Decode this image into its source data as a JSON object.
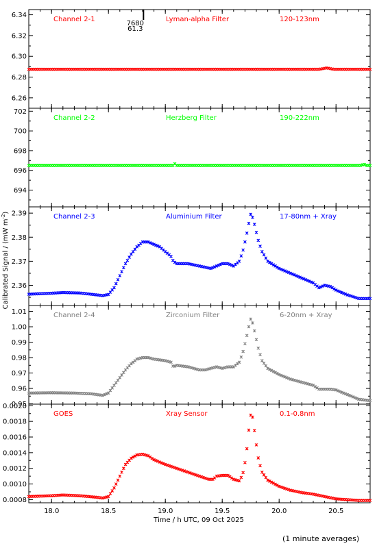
{
  "figure": {
    "ylabel": "Calibrated Signal / (mW m",
    "ylabel_sup": "-2",
    "ylabel_close": ")",
    "xlabel": "Time / h UTC, 09 Oct 2025",
    "footnote": "(1 minute averages)",
    "marker": {
      "top": "7680",
      "bottom": "61.3"
    }
  },
  "chart_data": [
    {
      "type": "scatter",
      "channel": "Channel 2-1",
      "filter": "Lyman-alpha Filter",
      "band": "120-123nm",
      "color": "#ff0000",
      "ylim": [
        6.25,
        6.345
      ],
      "yticks": [
        6.26,
        6.28,
        6.3,
        6.32,
        6.34
      ],
      "ytick_labels": [
        "6.26",
        "6.28",
        "6.30",
        "6.32",
        "6.34"
      ],
      "points": [
        [
          17.8,
          6.2875
        ],
        [
          20.35,
          6.2875
        ],
        [
          20.42,
          6.2888
        ],
        [
          20.48,
          6.2875
        ],
        [
          20.8,
          6.2875
        ]
      ]
    },
    {
      "type": "scatter",
      "channel": "Channel 2-2",
      "filter": "Herzberg Filter",
      "band": "190-222nm",
      "color": "#00ff00",
      "ylim": [
        692.3,
        702.3
      ],
      "yticks": [
        694,
        696,
        698,
        700,
        702
      ],
      "ytick_labels": [
        "694",
        "696",
        "698",
        "700",
        "702"
      ],
      "points": [
        [
          17.8,
          696.5
        ],
        [
          19.07,
          696.5
        ],
        [
          19.08,
          696.7
        ],
        [
          19.1,
          696.5
        ],
        [
          20.73,
          696.5
        ],
        [
          20.74,
          696.7
        ],
        [
          20.76,
          696.5
        ],
        [
          20.8,
          696.5
        ]
      ]
    },
    {
      "type": "scatter",
      "channel": "Channel 2-3",
      "filter": "Aluminium Filter",
      "band": "17-80nm + Xray",
      "color": "#0000ff",
      "ylim": [
        2.3516,
        2.3926
      ],
      "yticks": [
        2.36,
        2.37,
        2.38,
        2.39
      ],
      "ytick_labels": [
        "2.36",
        "2.37",
        "2.38",
        "2.39"
      ],
      "points": [
        [
          17.8,
          2.3563
        ],
        [
          18.0,
          2.3567
        ],
        [
          18.1,
          2.357
        ],
        [
          18.25,
          2.3568
        ],
        [
          18.4,
          2.356
        ],
        [
          18.45,
          2.3557
        ],
        [
          18.5,
          2.3562
        ],
        [
          18.55,
          2.359
        ],
        [
          18.6,
          2.364
        ],
        [
          18.65,
          2.369
        ],
        [
          18.7,
          2.373
        ],
        [
          18.75,
          2.376
        ],
        [
          18.8,
          2.378
        ],
        [
          18.85,
          2.378
        ],
        [
          18.9,
          2.377
        ],
        [
          18.95,
          2.376
        ],
        [
          19.0,
          2.374
        ],
        [
          19.05,
          2.372
        ],
        [
          19.07,
          2.37
        ],
        [
          19.1,
          2.369
        ],
        [
          19.2,
          2.369
        ],
        [
          19.3,
          2.368
        ],
        [
          19.4,
          2.367
        ],
        [
          19.45,
          2.368
        ],
        [
          19.5,
          2.369
        ],
        [
          19.55,
          2.369
        ],
        [
          19.6,
          2.368
        ],
        [
          19.65,
          2.37
        ],
        [
          19.68,
          2.374
        ],
        [
          19.71,
          2.38
        ],
        [
          19.73,
          2.385
        ],
        [
          19.75,
          2.3895
        ],
        [
          19.77,
          2.388
        ],
        [
          19.79,
          2.384
        ],
        [
          19.82,
          2.378
        ],
        [
          19.85,
          2.374
        ],
        [
          19.9,
          2.37
        ],
        [
          20.0,
          2.367
        ],
        [
          20.1,
          2.365
        ],
        [
          20.2,
          2.363
        ],
        [
          20.3,
          2.361
        ],
        [
          20.35,
          2.359
        ],
        [
          20.4,
          2.36
        ],
        [
          20.45,
          2.3595
        ],
        [
          20.5,
          2.358
        ],
        [
          20.6,
          2.356
        ],
        [
          20.7,
          2.3545
        ],
        [
          20.8,
          2.3545
        ]
      ]
    },
    {
      "type": "scatter",
      "channel": "Channel 2-4",
      "filter": "Zirconium Filter",
      "band": "6-20nm + Xray",
      "color": "#808080",
      "ylim": [
        0.9498,
        1.0138
      ],
      "yticks": [
        0.95,
        0.96,
        0.97,
        0.98,
        0.99,
        1.0,
        1.01
      ],
      "ytick_labels": [
        "0.95",
        "0.96",
        "0.97",
        "0.98",
        "0.99",
        "1.00",
        "1.01"
      ],
      "points": [
        [
          17.8,
          0.957
        ],
        [
          18.0,
          0.9572
        ],
        [
          18.2,
          0.957
        ],
        [
          18.35,
          0.9565
        ],
        [
          18.45,
          0.9555
        ],
        [
          18.5,
          0.957
        ],
        [
          18.55,
          0.962
        ],
        [
          18.6,
          0.967
        ],
        [
          18.65,
          0.972
        ],
        [
          18.7,
          0.976
        ],
        [
          18.75,
          0.979
        ],
        [
          18.8,
          0.98
        ],
        [
          18.85,
          0.98
        ],
        [
          18.9,
          0.979
        ],
        [
          19.0,
          0.978
        ],
        [
          19.05,
          0.977
        ],
        [
          19.07,
          0.974
        ],
        [
          19.1,
          0.975
        ],
        [
          19.2,
          0.974
        ],
        [
          19.3,
          0.972
        ],
        [
          19.35,
          0.972
        ],
        [
          19.4,
          0.973
        ],
        [
          19.45,
          0.974
        ],
        [
          19.5,
          0.973
        ],
        [
          19.55,
          0.974
        ],
        [
          19.6,
          0.974
        ],
        [
          19.65,
          0.977
        ],
        [
          19.68,
          0.983
        ],
        [
          19.71,
          0.992
        ],
        [
          19.73,
          0.999
        ],
        [
          19.75,
          1.005
        ],
        [
          19.77,
          1.002
        ],
        [
          19.79,
          0.995
        ],
        [
          19.82,
          0.985
        ],
        [
          19.85,
          0.978
        ],
        [
          19.9,
          0.973
        ],
        [
          20.0,
          0.969
        ],
        [
          20.1,
          0.966
        ],
        [
          20.2,
          0.964
        ],
        [
          20.3,
          0.962
        ],
        [
          20.35,
          0.9595
        ],
        [
          20.45,
          0.9595
        ],
        [
          20.5,
          0.959
        ],
        [
          20.6,
          0.956
        ],
        [
          20.7,
          0.953
        ],
        [
          20.8,
          0.952
        ]
      ]
    },
    {
      "type": "scatter",
      "channel": "GOES",
      "filter": "Xray Sensor",
      "band": "0.1-0.8nm",
      "color": "#ff0000",
      "ylim": [
        0.00076,
        0.00202
      ],
      "yticks": [
        0.0008,
        0.001,
        0.0012,
        0.0014,
        0.0016,
        0.0018,
        0.002
      ],
      "ytick_labels": [
        "0.0008",
        "0.0010",
        "0.0012",
        "0.0014",
        "0.0016",
        "0.0018",
        "0.0020"
      ],
      "points": [
        [
          17.8,
          0.00084
        ],
        [
          18.0,
          0.00085
        ],
        [
          18.1,
          0.00086
        ],
        [
          18.25,
          0.00085
        ],
        [
          18.4,
          0.00083
        ],
        [
          18.45,
          0.00082
        ],
        [
          18.5,
          0.00084
        ],
        [
          18.55,
          0.00095
        ],
        [
          18.6,
          0.0011
        ],
        [
          18.65,
          0.00125
        ],
        [
          18.7,
          0.00133
        ],
        [
          18.75,
          0.00137
        ],
        [
          18.8,
          0.00138
        ],
        [
          18.85,
          0.00136
        ],
        [
          18.9,
          0.00131
        ],
        [
          19.0,
          0.00125
        ],
        [
          19.1,
          0.0012
        ],
        [
          19.2,
          0.00115
        ],
        [
          19.3,
          0.0011
        ],
        [
          19.38,
          0.00106
        ],
        [
          19.42,
          0.00106
        ],
        [
          19.45,
          0.0011
        ],
        [
          19.5,
          0.00111
        ],
        [
          19.55,
          0.00111
        ],
        [
          19.6,
          0.00106
        ],
        [
          19.65,
          0.00104
        ],
        [
          19.68,
          0.00112
        ],
        [
          19.71,
          0.00135
        ],
        [
          19.73,
          0.00165
        ],
        [
          19.75,
          0.00188
        ],
        [
          19.77,
          0.00185
        ],
        [
          19.79,
          0.0016
        ],
        [
          19.82,
          0.0013
        ],
        [
          19.85,
          0.00115
        ],
        [
          19.9,
          0.00105
        ],
        [
          20.0,
          0.00097
        ],
        [
          20.1,
          0.00092
        ],
        [
          20.2,
          0.00089
        ],
        [
          20.3,
          0.00087
        ],
        [
          20.4,
          0.00084
        ],
        [
          20.5,
          0.00081
        ],
        [
          20.6,
          0.0008
        ],
        [
          20.7,
          0.00079
        ],
        [
          20.8,
          0.00079
        ]
      ]
    }
  ],
  "xaxis": {
    "xlim": [
      17.8,
      20.8
    ],
    "ticks": [
      18.0,
      18.5,
      19.0,
      19.5,
      20.0,
      20.5
    ],
    "tick_labels": [
      "18.0",
      "18.5",
      "19.0",
      "19.5",
      "20.0",
      "20.5"
    ],
    "marker_time": 18.82
  }
}
